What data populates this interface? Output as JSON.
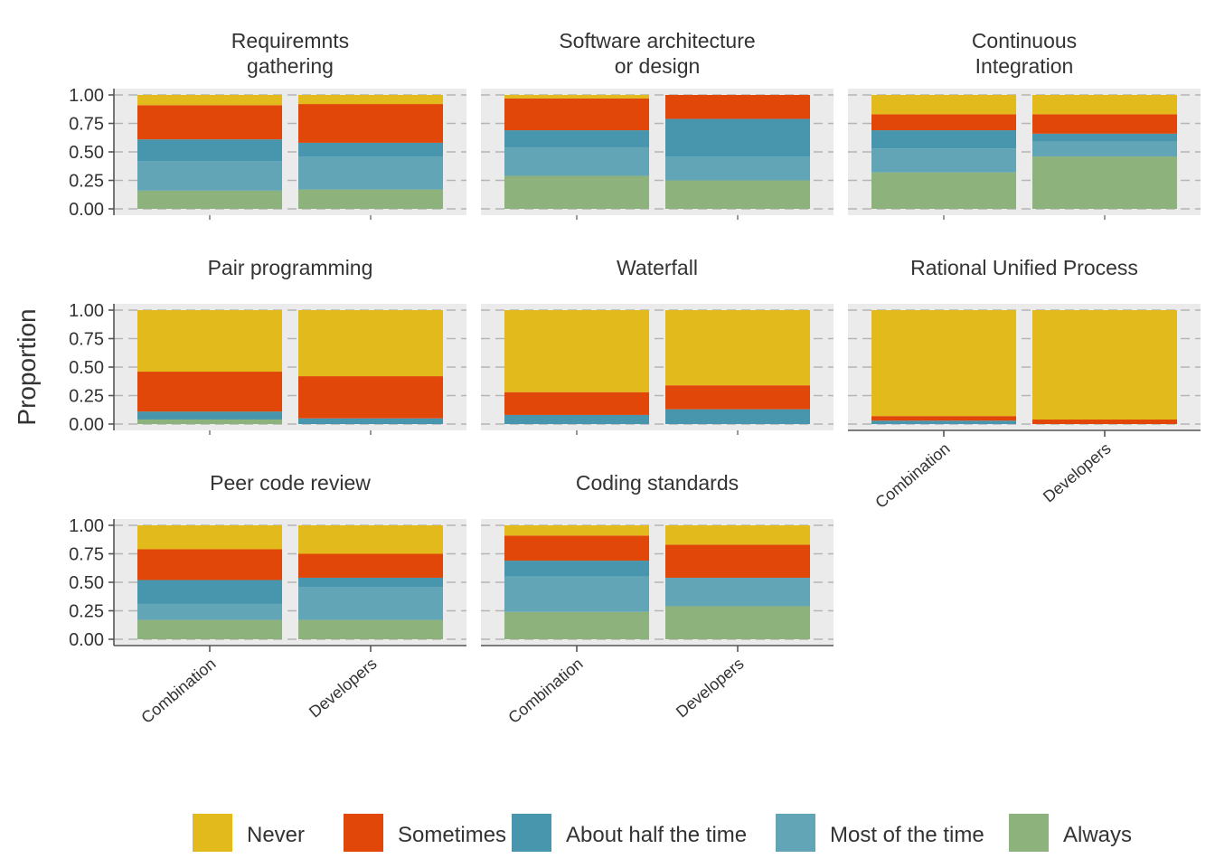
{
  "chart_data": {
    "type": "bar",
    "stacked": true,
    "faceted": true,
    "ylabel": "Proportion",
    "xlabel": "",
    "ylim": [
      0,
      1
    ],
    "yticks": [
      "0.00",
      "0.25",
      "0.50",
      "0.75",
      "1.00"
    ],
    "categories": [
      "Combination",
      "Developers"
    ],
    "legend": {
      "position": "bottom",
      "entries": [
        {
          "name": "Never",
          "color": "#E2BA1C"
        },
        {
          "name": "Sometimes",
          "color": "#E2470A"
        },
        {
          "name": "About half the time",
          "color": "#4896AD"
        },
        {
          "name": "Most of the time",
          "color": "#62A5B7"
        },
        {
          "name": "Always",
          "color": "#8EB27C"
        }
      ]
    },
    "stack_order_bottom_to_top": [
      "Always",
      "Most of the time",
      "About half the time",
      "Sometimes",
      "Never"
    ],
    "panels": [
      {
        "title": [
          "Requiremnts",
          "gathering"
        ],
        "bars": [
          {
            "category": "Combination",
            "values": [
              0.16,
              0.26,
              0.19,
              0.3,
              0.09
            ]
          },
          {
            "category": "Developers",
            "values": [
              0.17,
              0.29,
              0.12,
              0.34,
              0.08
            ]
          }
        ]
      },
      {
        "title": [
          "Software architecture",
          "or design"
        ],
        "bars": [
          {
            "category": "Combination",
            "values": [
              0.29,
              0.25,
              0.15,
              0.28,
              0.03
            ]
          },
          {
            "category": "Developers",
            "values": [
              0.25,
              0.21,
              0.33,
              0.21,
              0.0
            ]
          }
        ]
      },
      {
        "title": [
          "Continuous",
          "Integration"
        ],
        "bars": [
          {
            "category": "Combination",
            "values": [
              0.32,
              0.21,
              0.16,
              0.14,
              0.17
            ]
          },
          {
            "category": "Developers",
            "values": [
              0.46,
              0.13,
              0.07,
              0.17,
              0.17
            ]
          }
        ]
      },
      {
        "title": [
          "Pair programming"
        ],
        "bars": [
          {
            "category": "Combination",
            "values": [
              0.04,
              0.0,
              0.07,
              0.35,
              0.54
            ]
          },
          {
            "category": "Developers",
            "values": [
              0.0,
              0.0,
              0.05,
              0.37,
              0.58
            ]
          }
        ]
      },
      {
        "title": [
          "Waterfall"
        ],
        "bars": [
          {
            "category": "Combination",
            "values": [
              0.0,
              0.0,
              0.08,
              0.2,
              0.72
            ]
          },
          {
            "category": "Developers",
            "values": [
              0.0,
              0.0,
              0.13,
              0.21,
              0.66
            ]
          }
        ]
      },
      {
        "title": [
          "Rational Unified Process"
        ],
        "bars": [
          {
            "category": "Combination",
            "values": [
              0.0,
              0.0,
              0.03,
              0.04,
              0.93
            ]
          },
          {
            "category": "Developers",
            "values": [
              0.0,
              0.0,
              0.0,
              0.04,
              0.96
            ]
          }
        ]
      },
      {
        "title": [
          "Peer code review"
        ],
        "bars": [
          {
            "category": "Combination",
            "values": [
              0.17,
              0.14,
              0.21,
              0.27,
              0.21
            ]
          },
          {
            "category": "Developers",
            "values": [
              0.17,
              0.29,
              0.08,
              0.21,
              0.25
            ]
          }
        ]
      },
      {
        "title": [
          "Coding standards"
        ],
        "bars": [
          {
            "category": "Combination",
            "values": [
              0.24,
              0.31,
              0.14,
              0.22,
              0.09
            ]
          },
          {
            "category": "Developers",
            "values": [
              0.29,
              0.25,
              0.0,
              0.29,
              0.17
            ]
          }
        ]
      }
    ]
  }
}
